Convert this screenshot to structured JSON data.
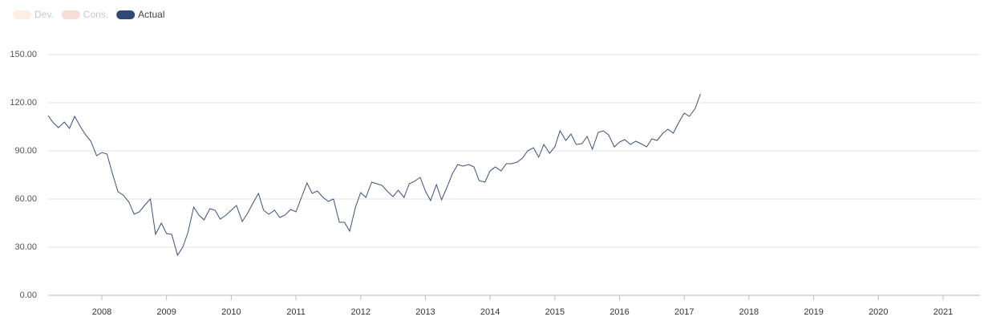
{
  "chart_data": {
    "type": "line",
    "legend_inactive": [
      {
        "name": "Dev.",
        "color": "#fdeee2"
      },
      {
        "name": "Cons.",
        "color": "#f7dcd8"
      }
    ],
    "x": [
      2007.17,
      2007.25,
      2007.33,
      2007.42,
      2007.5,
      2007.58,
      2007.67,
      2007.75,
      2007.83,
      2007.92,
      2008.0,
      2008.08,
      2008.17,
      2008.25,
      2008.33,
      2008.42,
      2008.5,
      2008.58,
      2008.67,
      2008.75,
      2008.83,
      2008.92,
      2009.0,
      2009.08,
      2009.17,
      2009.25,
      2009.33,
      2009.42,
      2009.5,
      2009.58,
      2009.67,
      2009.75,
      2009.83,
      2009.92,
      2010.0,
      2010.08,
      2010.17,
      2010.25,
      2010.33,
      2010.42,
      2010.5,
      2010.58,
      2010.67,
      2010.75,
      2010.83,
      2010.92,
      2011.0,
      2011.08,
      2011.17,
      2011.25,
      2011.33,
      2011.42,
      2011.5,
      2011.58,
      2011.67,
      2011.75,
      2011.83,
      2011.92,
      2012.0,
      2012.08,
      2012.17,
      2012.25,
      2012.33,
      2012.42,
      2012.5,
      2012.58,
      2012.67,
      2012.75,
      2012.83,
      2012.92,
      2013.0,
      2013.08,
      2013.17,
      2013.25,
      2013.33,
      2013.42,
      2013.5,
      2013.58,
      2013.67,
      2013.75,
      2013.83,
      2013.92,
      2014.0,
      2014.08,
      2014.17,
      2014.25,
      2014.33,
      2014.42,
      2014.5,
      2014.58,
      2014.67,
      2014.75,
      2014.83,
      2014.92,
      2015.0,
      2015.08,
      2015.17,
      2015.25,
      2015.33,
      2015.42,
      2015.5,
      2015.58,
      2015.67,
      2015.75,
      2015.83,
      2015.92,
      2016.0,
      2016.08,
      2016.17,
      2016.25,
      2016.33,
      2016.42,
      2016.5,
      2016.58,
      2016.67,
      2016.75,
      2016.83,
      2016.92,
      2017.0,
      2017.08,
      2017.17,
      2017.25
    ],
    "series": [
      {
        "name": "Actual",
        "color": "#2f4a74",
        "line_color": "#3d5078",
        "values": [
          112,
          107.5,
          104.5,
          108,
          104,
          111.5,
          105,
          100,
          96,
          87,
          89,
          88,
          75,
          64.5,
          62.5,
          58,
          50.5,
          52,
          56.5,
          60,
          38,
          45,
          38.5,
          38,
          25,
          30,
          39,
          55,
          50,
          47,
          54,
          53,
          47.5,
          50,
          53,
          56,
          46,
          51,
          57,
          63.5,
          53,
          50.5,
          53,
          48.5,
          50,
          53.5,
          52,
          60.5,
          70,
          63.5,
          65,
          61,
          58.5,
          60,
          45.5,
          45.5,
          40,
          55,
          64,
          61,
          70.5,
          69.5,
          68.5,
          64.5,
          61.5,
          65.5,
          61,
          69.5,
          71,
          73.5,
          65,
          59,
          69,
          59.5,
          67,
          76,
          81.5,
          80.5,
          81.5,
          80,
          71.5,
          70.5,
          77.5,
          80,
          77.5,
          82,
          82,
          83,
          85.5,
          90,
          92,
          86,
          94,
          88.5,
          92.5,
          102.5,
          96.5,
          100.5,
          94,
          94.5,
          99,
          91,
          101.5,
          102.5,
          100,
          92.5,
          95.5,
          97,
          94,
          96,
          94.5,
          92.5,
          97.5,
          96.5,
          101,
          103.5,
          101,
          108,
          113.5,
          111.5,
          116.5,
          125.5
        ]
      }
    ],
    "xlim": [
      2007.17,
      2021.57
    ],
    "xticks": [
      2008,
      2009,
      2010,
      2011,
      2012,
      2013,
      2014,
      2015,
      2016,
      2017,
      2018,
      2019,
      2020,
      2021
    ],
    "ylim": [
      0,
      150
    ],
    "yticks": [
      {
        "value": 0,
        "label": "0.00"
      },
      {
        "value": 30,
        "label": "30.00"
      },
      {
        "value": 60,
        "label": "60.00"
      },
      {
        "value": 90,
        "label": "90.00"
      },
      {
        "value": 120,
        "label": "120.00"
      },
      {
        "value": 150,
        "label": "150.00"
      }
    ],
    "grid": true
  }
}
